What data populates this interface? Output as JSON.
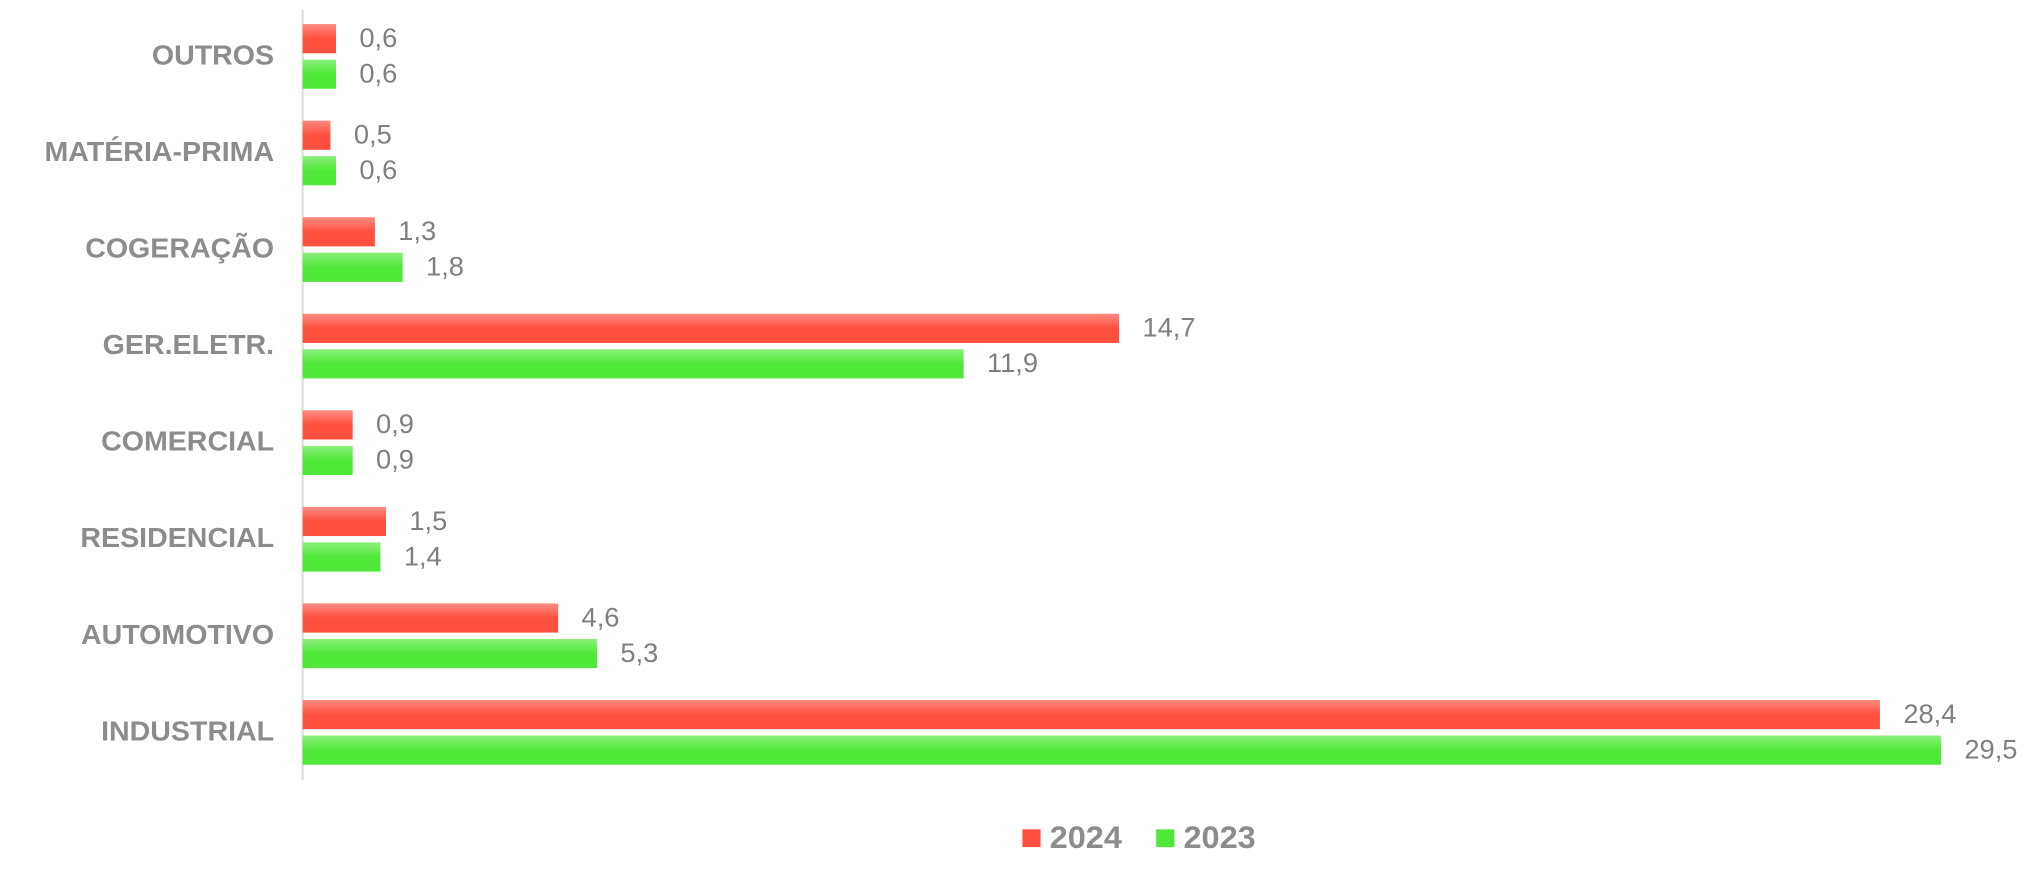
{
  "chart_data": {
    "type": "hbar",
    "categories": [
      "OUTROS",
      "MATÉRIA-PRIMA",
      "COGERAÇÃO",
      "GER.ELETR.",
      "COMERCIAL",
      "RESIDENCIAL",
      "AUTOMOTIVO",
      "INDUSTRIAL"
    ],
    "series": [
      {
        "name": "2024",
        "color": "#ff4f3f",
        "values": [
          0.6,
          0.5,
          1.3,
          14.7,
          0.9,
          1.5,
          4.6,
          28.4
        ],
        "value_labels": [
          "0,6",
          "0,5",
          "1,3",
          "14,7",
          "0,9",
          "1,5",
          "4,6",
          "28,4"
        ]
      },
      {
        "name": "2023",
        "color": "#4fe838",
        "values": [
          0.6,
          0.6,
          1.8,
          11.9,
          0.9,
          1.4,
          5.3,
          29.5
        ],
        "value_labels": [
          "0,6",
          "0,6",
          "1,8",
          "11,9",
          "0,9",
          "1,4",
          "5,3",
          "29,5"
        ]
      }
    ],
    "xlim": [
      0,
      31
    ],
    "legend": "bottom"
  }
}
